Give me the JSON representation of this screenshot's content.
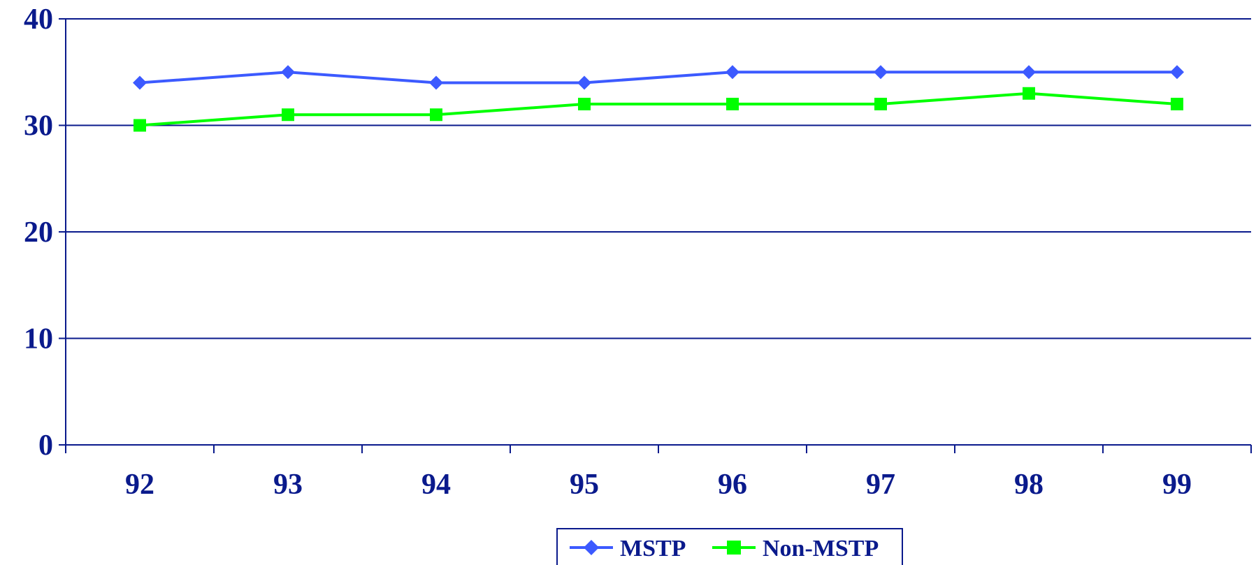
{
  "chart_data": {
    "type": "line",
    "categories": [
      "92",
      "93",
      "94",
      "95",
      "96",
      "97",
      "98",
      "99"
    ],
    "series": [
      {
        "name": "MSTP",
        "values": [
          34,
          35,
          34,
          34,
          35,
          35,
          35,
          35
        ],
        "color": "#3c5aff",
        "marker": "diamond"
      },
      {
        "name": "Non-MSTP",
        "values": [
          30,
          31,
          31,
          32,
          32,
          32,
          33,
          32
        ],
        "color": "#00ff00",
        "marker": "square"
      }
    ],
    "ylim": [
      0,
      40
    ],
    "yticks": [
      "0",
      "10",
      "20",
      "30",
      "40"
    ],
    "grid": true,
    "legend": "bottom-center",
    "axis_color": "#0a1a8c",
    "text_color": "#0a1a8c"
  }
}
